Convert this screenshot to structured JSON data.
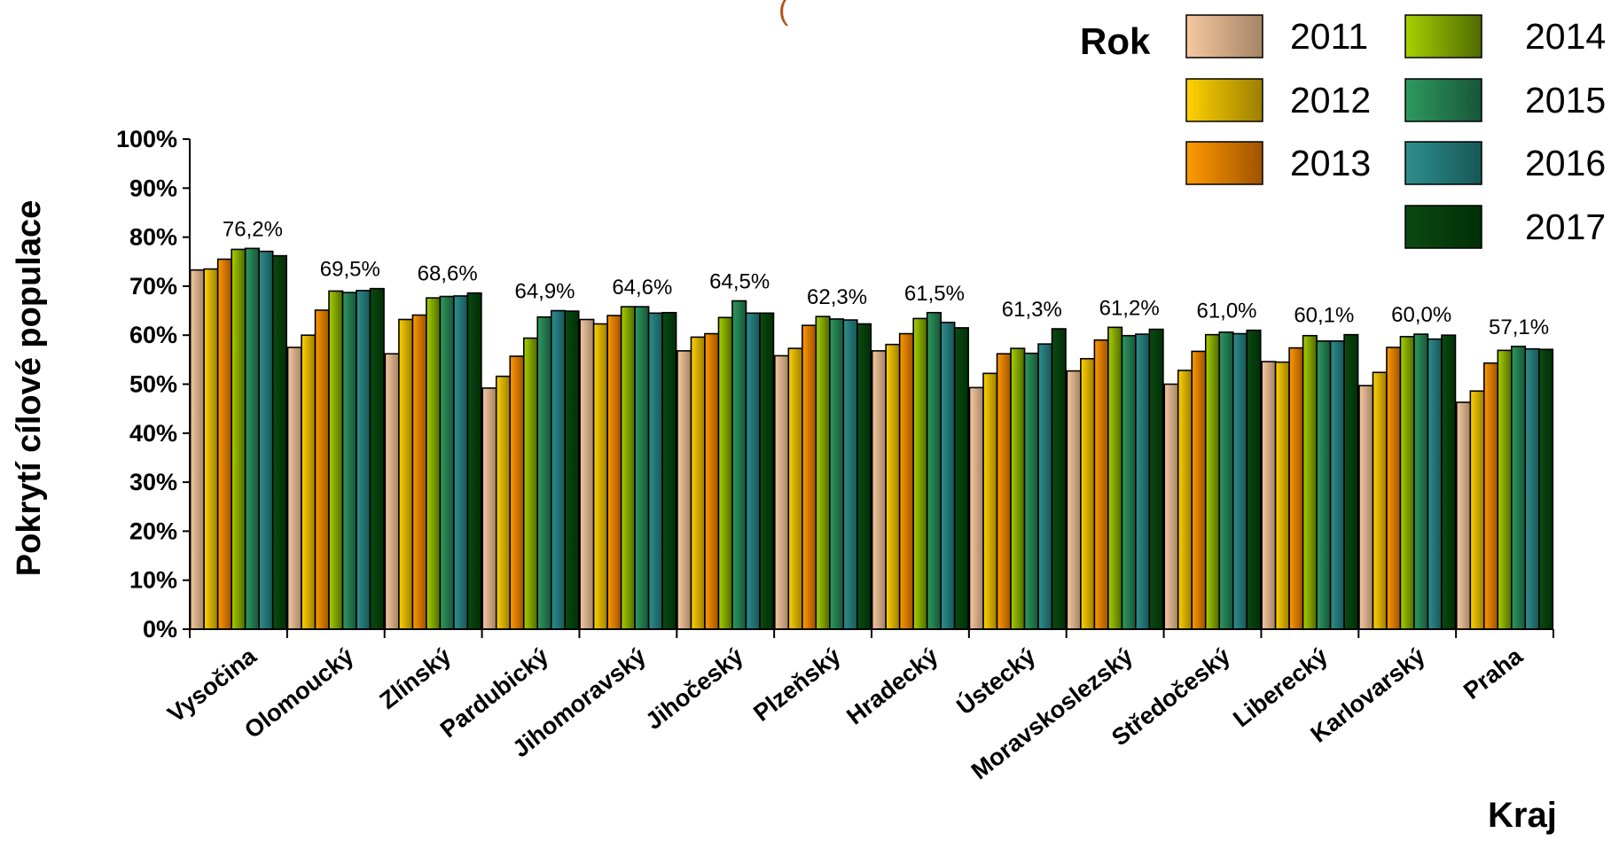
{
  "chart_data": {
    "type": "bar",
    "title": "(",
    "xlabel": "Kraj",
    "ylabel": "Pokrytí cílové populace",
    "ylim": [
      0,
      100
    ],
    "yticks": [
      "0%",
      "10%",
      "20%",
      "30%",
      "40%",
      "50%",
      "60%",
      "70%",
      "80%",
      "90%",
      "100%"
    ],
    "legend_title": "Rok",
    "legend_position": "top-right",
    "grid": false,
    "categories": [
      "Vysočina",
      "Olomoucký",
      "Zlínský",
      "Pardubický",
      "Jihomoravský",
      "Jihočeský",
      "Plzeňský",
      "Hradecký",
      "Ústecký",
      "Moravskoslezský",
      "Středočeský",
      "Liberecký",
      "Karlovarský",
      "Praha"
    ],
    "series": [
      {
        "name": "2011",
        "color": "#f6c9a0",
        "color_dark": "#a58466",
        "values": [
          73.3,
          57.5,
          56.2,
          49.2,
          63.2,
          56.8,
          55.8,
          56.8,
          49.3,
          52.7,
          50.0,
          54.6,
          49.7,
          46.3
        ]
      },
      {
        "name": "2012",
        "color": "#ffd200",
        "color_dark": "#9c7e00",
        "values": [
          73.5,
          60.0,
          63.2,
          51.6,
          62.3,
          59.6,
          57.3,
          58.1,
          52.2,
          55.2,
          52.8,
          54.5,
          52.4,
          48.6
        ]
      },
      {
        "name": "2013",
        "color": "#ff9a00",
        "color_dark": "#a05200",
        "values": [
          75.5,
          65.1,
          64.1,
          55.7,
          64.0,
          60.3,
          62.0,
          60.3,
          56.2,
          59.0,
          56.7,
          57.4,
          57.5,
          54.3
        ]
      },
      {
        "name": "2014",
        "color": "#a8d000",
        "color_dark": "#4f6a00",
        "values": [
          77.5,
          69.0,
          67.6,
          59.4,
          65.8,
          63.6,
          63.8,
          63.4,
          57.3,
          61.6,
          60.1,
          59.9,
          59.7,
          56.9
        ]
      },
      {
        "name": "2015",
        "color": "#2e9a5e",
        "color_dark": "#17553a",
        "values": [
          77.7,
          68.7,
          67.9,
          63.7,
          65.8,
          67.0,
          63.3,
          64.6,
          56.3,
          59.9,
          60.6,
          58.8,
          60.2,
          57.7
        ]
      },
      {
        "name": "2016",
        "color": "#2f8e8e",
        "color_dark": "#175757",
        "values": [
          77.1,
          69.1,
          68.0,
          65.0,
          64.5,
          64.5,
          63.1,
          62.6,
          58.2,
          60.2,
          60.3,
          58.8,
          59.2,
          57.2
        ]
      },
      {
        "name": "2017",
        "color": "#0b4a13",
        "color_dark": "#002f05",
        "values": [
          76.2,
          69.5,
          68.6,
          64.9,
          64.6,
          64.5,
          62.3,
          61.5,
          61.3,
          61.2,
          61.0,
          60.1,
          60.0,
          57.1
        ]
      }
    ],
    "data_labels": [
      "76,2%",
      "69,5%",
      "68,6%",
      "64,9%",
      "64,6%",
      "64,5%",
      "62,3%",
      "61,5%",
      "61,3%",
      "61,2%",
      "61,0%",
      "60,1%",
      "60,0%",
      "57,1%"
    ]
  }
}
